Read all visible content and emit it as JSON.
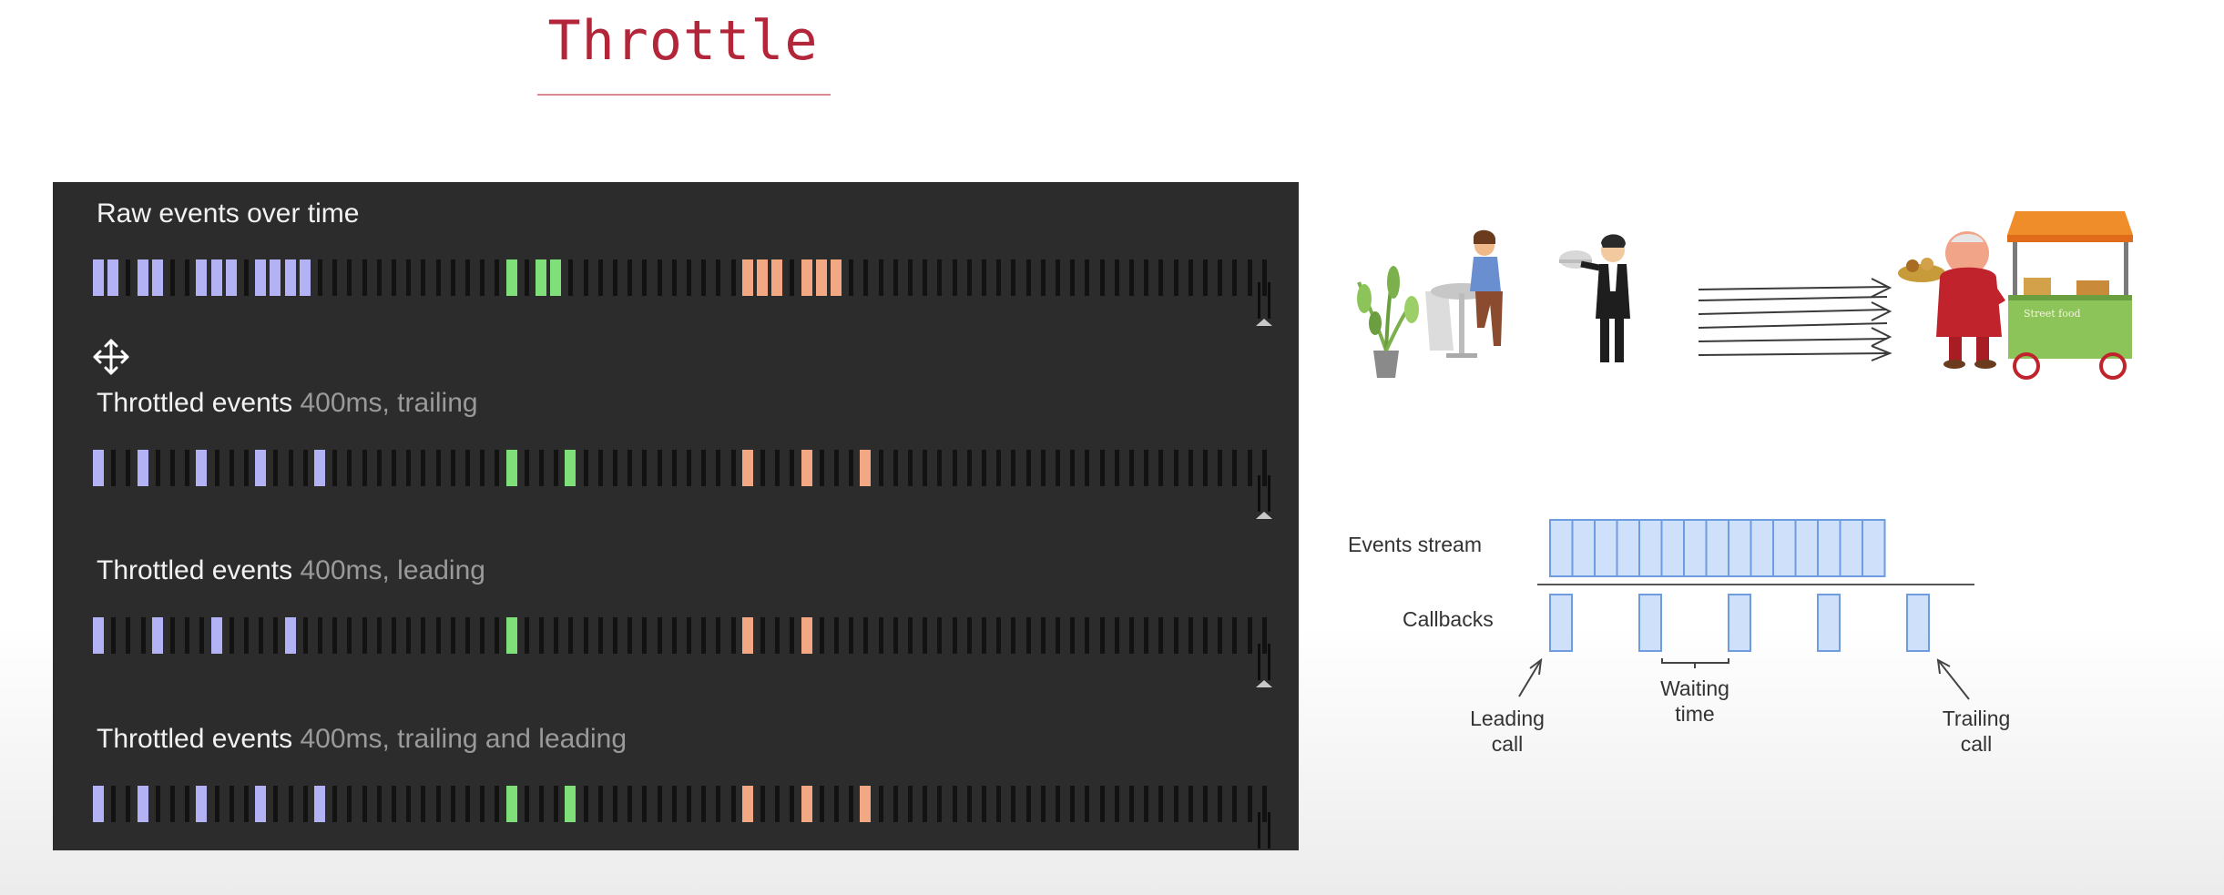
{
  "title": "Throttle",
  "panel": {
    "rows": [
      {
        "label": "Raw events over time",
        "sub": ""
      },
      {
        "label": "Throttled events",
        "sub": "400ms, trailing"
      },
      {
        "label": "Throttled events",
        "sub": "400ms, leading"
      },
      {
        "label": "Throttled events",
        "sub": "400ms, trailing and leading"
      }
    ],
    "colors": {
      "blue": "#b3b2f4",
      "green": "#7fe07a",
      "orange": "#f2a882",
      "tick": "#121212"
    },
    "tracks": [
      {
        "events": [
          [
            0,
            "blue"
          ],
          [
            1,
            "blue"
          ],
          [
            3,
            "blue"
          ],
          [
            4,
            "blue"
          ],
          [
            7,
            "blue"
          ],
          [
            8,
            "blue"
          ],
          [
            9,
            "blue"
          ],
          [
            11,
            "blue"
          ],
          [
            12,
            "blue"
          ],
          [
            13,
            "blue"
          ],
          [
            14,
            "blue"
          ],
          [
            28,
            "green"
          ],
          [
            30,
            "green"
          ],
          [
            31,
            "green"
          ],
          [
            44,
            "orange"
          ],
          [
            45,
            "orange"
          ],
          [
            46,
            "orange"
          ],
          [
            48,
            "orange"
          ],
          [
            49,
            "orange"
          ],
          [
            50,
            "orange"
          ]
        ]
      },
      {
        "events": [
          [
            0,
            "blue"
          ],
          [
            3,
            "blue"
          ],
          [
            7,
            "blue"
          ],
          [
            11,
            "blue"
          ],
          [
            15,
            "blue"
          ],
          [
            28,
            "green"
          ],
          [
            32,
            "green"
          ],
          [
            44,
            "orange"
          ],
          [
            48,
            "orange"
          ],
          [
            52,
            "orange"
          ]
        ]
      },
      {
        "events": [
          [
            0,
            "blue"
          ],
          [
            4,
            "blue"
          ],
          [
            8,
            "blue"
          ],
          [
            13,
            "blue"
          ],
          [
            28,
            "green"
          ],
          [
            44,
            "orange"
          ],
          [
            48,
            "orange"
          ]
        ]
      },
      {
        "events": [
          [
            0,
            "blue"
          ],
          [
            3,
            "blue"
          ],
          [
            7,
            "blue"
          ],
          [
            11,
            "blue"
          ],
          [
            15,
            "blue"
          ],
          [
            28,
            "green"
          ],
          [
            32,
            "green"
          ],
          [
            44,
            "orange"
          ],
          [
            48,
            "orange"
          ],
          [
            52,
            "orange"
          ]
        ]
      }
    ],
    "tick_count": 80,
    "move_icon": "move-arrows-icon"
  },
  "illustration": {
    "icons": [
      "plant-icon",
      "customer-at-table-icon",
      "waiter-icon",
      "arrows-icon",
      "chef-icon",
      "food-cart-icon"
    ],
    "cart_sign": "Street food"
  },
  "diagram": {
    "events_label": "Events stream",
    "callbacks_label": "Callbacks",
    "leading_label": [
      "Leading",
      "call"
    ],
    "waiting_label": [
      "Waiting",
      "time"
    ],
    "trailing_label": [
      "Trailing",
      "call"
    ],
    "event_count": 15,
    "callback_count": 5,
    "box_fill": "#cfe0fb",
    "box_stroke": "#6f9be0"
  }
}
